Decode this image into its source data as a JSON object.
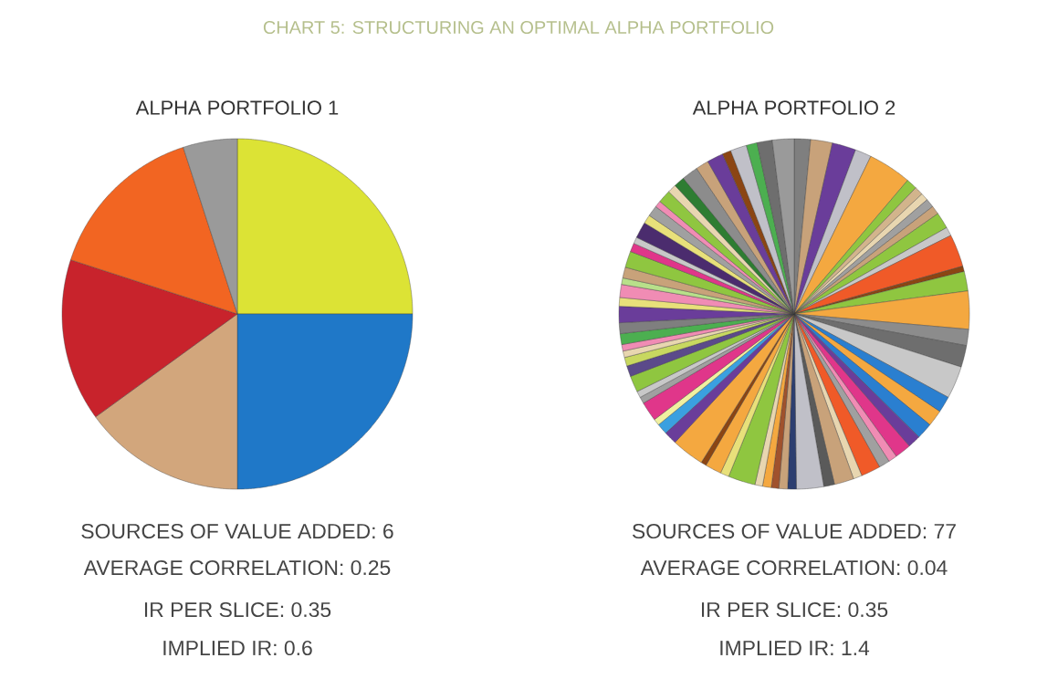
{
  "chart_data": [
    {
      "type": "pie",
      "title": "CHART 5: STRUCTURING AN OPTIMAL ALPHA PORTFOLIO",
      "subtitle": "ALPHA PORTFOLIO 1",
      "categories": [
        null,
        null,
        null,
        null,
        null,
        null
      ],
      "values": [
        25,
        25,
        15,
        15,
        15,
        5
      ],
      "colors": [
        "#dce335",
        "#1f78c8",
        "#d2a67c",
        "#c8232c",
        "#f26522",
        "#9a9a9a"
      ],
      "annotations": [
        "SOURCES OF VALUE ADDED: 6",
        "AVERAGE CORRELATION: 0.25",
        "IR PER SLICE: 0.35",
        "IMPLIED IR: 0.6"
      ]
    },
    {
      "type": "pie",
      "subtitle": "ALPHA PORTFOLIO 2",
      "categories": [
        null,
        null,
        null,
        null,
        null,
        null,
        null,
        null,
        null,
        null,
        null,
        null,
        null,
        null,
        null,
        null,
        null,
        null,
        null,
        null,
        null,
        null,
        null,
        null,
        null,
        null,
        null,
        null,
        null,
        null,
        null,
        null,
        null,
        null,
        null,
        null,
        null,
        null,
        null,
        null,
        null,
        null,
        null,
        null,
        null,
        null,
        null,
        null,
        null,
        null,
        null,
        null,
        null,
        null,
        null,
        null,
        null,
        null,
        null,
        null,
        null,
        null,
        null,
        null,
        null,
        null,
        null,
        null,
        null,
        null,
        null,
        null,
        null,
        null,
        null,
        null,
        null
      ],
      "values": [
        1.5,
        2.0,
        2.2,
        1.5,
        4.0,
        1.0,
        0.8,
        0.7,
        0.8,
        0.8,
        1.5,
        0.8,
        3.0,
        0.5,
        1.8,
        3.5,
        1.5,
        2.0,
        3.0,
        1.5,
        1.5,
        1.5,
        1.2,
        1.5,
        0.8,
        1.0,
        1.8,
        0.8,
        1.8,
        1.0,
        2.5,
        0.8,
        0.8,
        0.7,
        0.8,
        0.7,
        2.5,
        0.8,
        1.5,
        0.5,
        3.0,
        1.2,
        1.0,
        0.6,
        1.8,
        0.6,
        0.6,
        1.5,
        1.0,
        0.8,
        0.6,
        0.6,
        1.0,
        1.0,
        1.5,
        0.8,
        1.2,
        0.6,
        1.0,
        1.5,
        0.8,
        0.6,
        1.5,
        0.8,
        1.0,
        0.6,
        1.2,
        0.8,
        1.0,
        1.5,
        1.2,
        1.5,
        0.8,
        1.5,
        1.0,
        1.4,
        2.0
      ],
      "colors": [
        "#7f7f7f",
        "#c8a27a",
        "#6a3d9a",
        "#c0c0c8",
        "#f4a840",
        "#8fc640",
        "#d2b48c",
        "#e8d6b0",
        "#a0a0a0",
        "#c8a27a",
        "#8fc640",
        "#c8c8c8",
        "#f05a28",
        "#8b4513",
        "#8fc640",
        "#f4a840",
        "#8c8c8c",
        "#6e6e6e",
        "#c8c8c8",
        "#2a7fd0",
        "#f4a840",
        "#2a7fd0",
        "#6a3d9a",
        "#e0368a",
        "#f08cb4",
        "#a0a0a0",
        "#f05a28",
        "#e8d6b0",
        "#c8a27a",
        "#5a5a5a",
        "#c0c0c8",
        "#2c3e70",
        "#c8a27a",
        "#a0522d",
        "#f4a840",
        "#e8d6b0",
        "#8fc640",
        "#e8e07a",
        "#f4a840",
        "#8b4513",
        "#f4a840",
        "#6a3d9a",
        "#3aa0e0",
        "#f0f0a0",
        "#e0368a",
        "#a0a0a0",
        "#c8c8c8",
        "#8fc640",
        "#5b4a8a",
        "#c8d860",
        "#e8d6b0",
        "#f08cb4",
        "#4caf50",
        "#7f7f7f",
        "#6a3d9a",
        "#e8e07a",
        "#f08cb4",
        "#b8e08a",
        "#c8a27a",
        "#8fc640",
        "#e0368a",
        "#c8c8c8",
        "#4b2c6e",
        "#e8e07a",
        "#a0a0a0",
        "#f08cb4",
        "#8fc640",
        "#e8d6b0",
        "#2e7d32",
        "#8c8c8c",
        "#c8a27a",
        "#6a3d9a",
        "#8b4513",
        "#c0c0c8",
        "#4caf50",
        "#6e6e6e",
        "#9a9a9a"
      ],
      "annotations": [
        "SOURCES OF VALUE ADDED: 77",
        "AVERAGE CORRELATION: 0.04",
        "IR PER SLICE: 0.35",
        "IMPLIED IR: 1.4"
      ]
    }
  ]
}
